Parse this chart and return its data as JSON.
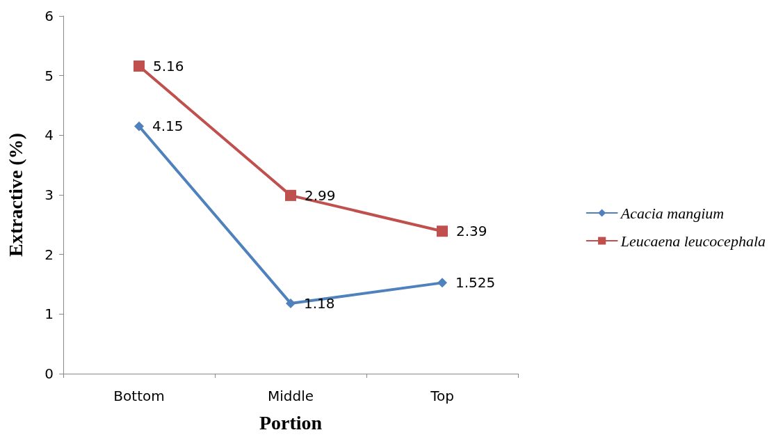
{
  "chart_data": {
    "type": "line",
    "xlabel": "Portion",
    "ylabel": "Extractive (%)",
    "categories": [
      "Bottom",
      "Middle",
      "Top"
    ],
    "series": [
      {
        "name": "Acacia mangium",
        "color": "#4f81bd",
        "marker": "diamond",
        "values": [
          4.15,
          1.18,
          1.525
        ]
      },
      {
        "name": "Leucaena leucocephala",
        "color": "#c0504d",
        "marker": "square",
        "values": [
          5.16,
          2.99,
          2.39
        ]
      }
    ],
    "ylim": [
      0,
      6
    ],
    "yticks": [
      0,
      1,
      2,
      3,
      4,
      5,
      6
    ],
    "grid": false,
    "legend": "right",
    "data_labels": true,
    "line_style": "solid"
  }
}
